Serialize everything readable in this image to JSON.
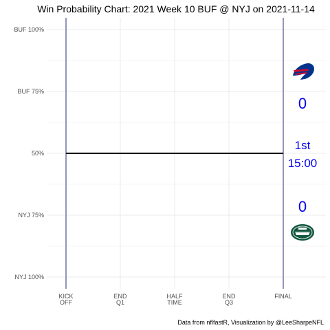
{
  "chart_data": {
    "type": "line",
    "title": "Win Probability Chart: 2021 Week 10 BUF @ NYJ on 2021-11-14",
    "y_ticks": [
      {
        "value": 100,
        "label": "BUF 100%"
      },
      {
        "value": 75,
        "label": "BUF 75%"
      },
      {
        "value": 50,
        "label": "50%"
      },
      {
        "value": 25,
        "label": "NYJ 75%"
      },
      {
        "value": 0,
        "label": "NYJ 100%"
      }
    ],
    "x_ticks": [
      {
        "value": 0,
        "label": [
          "KICK",
          "OFF"
        ]
      },
      {
        "value": 900,
        "label": [
          "END",
          "Q1"
        ]
      },
      {
        "value": 1800,
        "label": [
          "HALF",
          "TIME"
        ]
      },
      {
        "value": 2700,
        "label": [
          "END",
          "Q3"
        ]
      },
      {
        "value": 3600,
        "label": [
          "FINAL"
        ]
      }
    ],
    "xlim": [
      0,
      3600
    ],
    "ylim": [
      0,
      100
    ],
    "grid": true,
    "series": [
      {
        "x": [
          0,
          3600
        ],
        "y": [
          50,
          50
        ]
      }
    ],
    "colors": {
      "line": "#000000",
      "vline": "#2a2a7a",
      "grid": "#ebebeb",
      "annotation": "#0000ee",
      "buf_blue": "#00338d",
      "buf_red": "#c60c30",
      "nyj_green": "#125740"
    },
    "annotations": {
      "buf_score": "0",
      "nyj_score": "0",
      "quarter": "1st",
      "clock": "15:00"
    },
    "logos": {
      "top": "bills-logo",
      "bottom": "jets-logo"
    },
    "caption": "Data from nflfastR, Visualization by @LeeSharpeNFL"
  }
}
